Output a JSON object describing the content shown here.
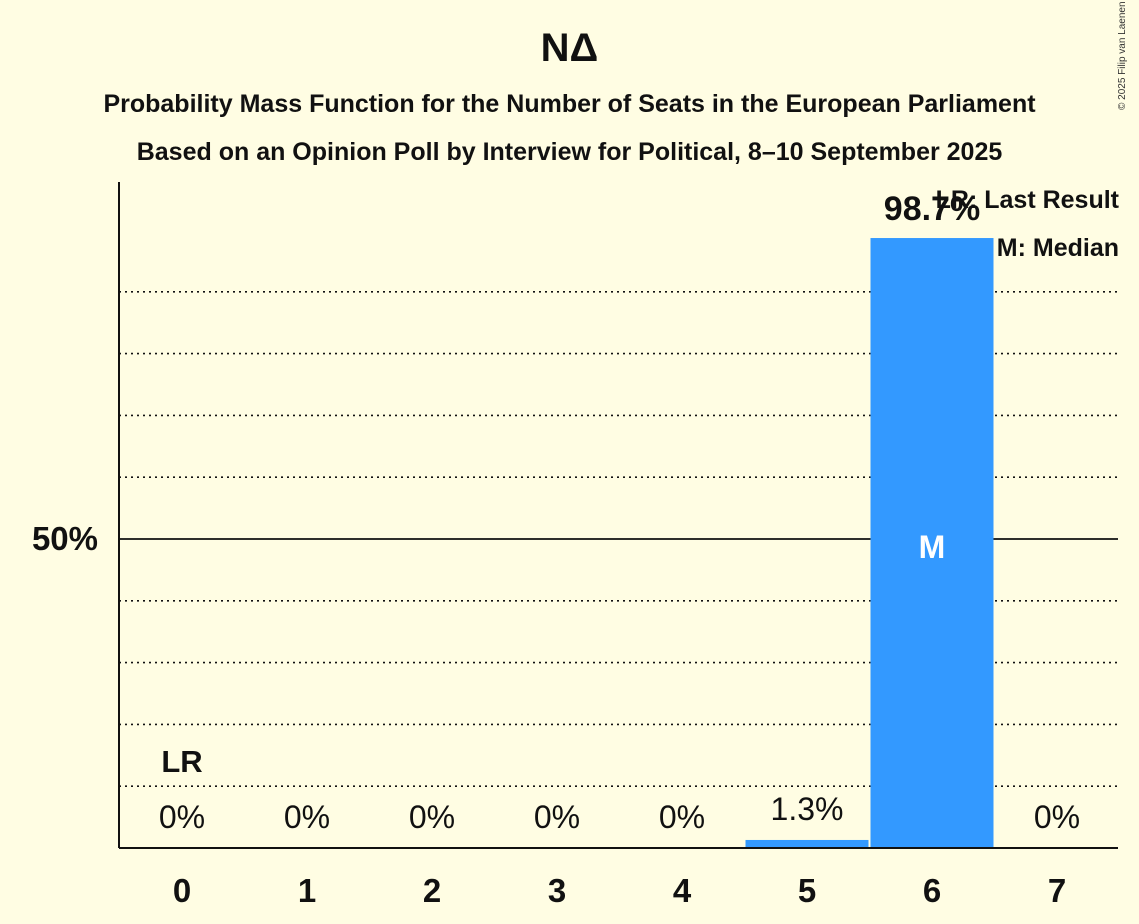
{
  "title": "ΝΔ",
  "subtitle_1": "Probability Mass Function for the Number of Seats in the European Parliament",
  "subtitle_2": "Based on an Opinion Poll by Interview for Political, 8–10 September 2025",
  "copyright": "© 2025 Filip van Laenen",
  "legend": {
    "last_result": "LR: Last Result",
    "median": "M: Median"
  },
  "colors": {
    "background": "#FFFDE3",
    "bar": "#3399FF",
    "text": "#111111"
  },
  "chart_data": {
    "type": "bar",
    "categories": [
      "0",
      "1",
      "2",
      "3",
      "4",
      "5",
      "6",
      "7"
    ],
    "values": [
      0,
      0,
      0,
      0,
      0,
      1.3,
      98.7,
      0
    ],
    "value_labels": [
      "0%",
      "0%",
      "0%",
      "0%",
      "0%",
      "1.3%",
      "98.7%",
      "0%"
    ],
    "ylim": [
      0,
      108
    ],
    "y_tick_label": "50%",
    "y_tick_value": 50,
    "gridlines": [
      10,
      20,
      30,
      40,
      60,
      70,
      80,
      90
    ],
    "last_result_category": "0",
    "last_result_label": "LR",
    "median_category": "6",
    "median_label": "M",
    "grid": true,
    "legend_position": "top-right"
  }
}
